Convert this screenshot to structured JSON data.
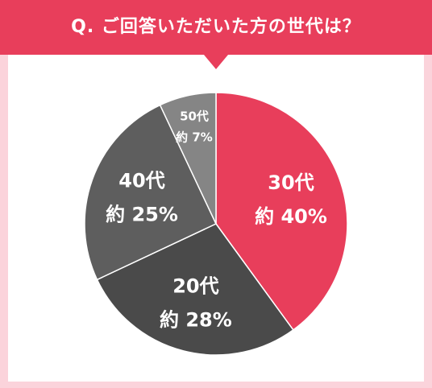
{
  "header": {
    "question": "Q. ご回答いただいた方の世代は？"
  },
  "colors": {
    "background": "#fbd3db",
    "header": "#e83e5b",
    "card": "#ffffff",
    "slice_30s": "#e83e5b",
    "slice_20s": "#4a4a4a",
    "slice_40s": "#5e5e5e",
    "slice_50s": "#858585"
  },
  "chart_data": {
    "type": "pie",
    "title": "Q. ご回答いただいた方の世代は？",
    "slices": [
      {
        "name": "30代",
        "value": 40,
        "value_label": "約 40%",
        "color": "#e83e5b"
      },
      {
        "name": "20代",
        "value": 28,
        "value_label": "約 28%",
        "color": "#4a4a4a"
      },
      {
        "name": "40代",
        "value": 25,
        "value_label": "約 25%",
        "color": "#5e5e5e"
      },
      {
        "name": "50代",
        "value": 7,
        "value_label": "約 7%",
        "color": "#858585"
      }
    ]
  }
}
